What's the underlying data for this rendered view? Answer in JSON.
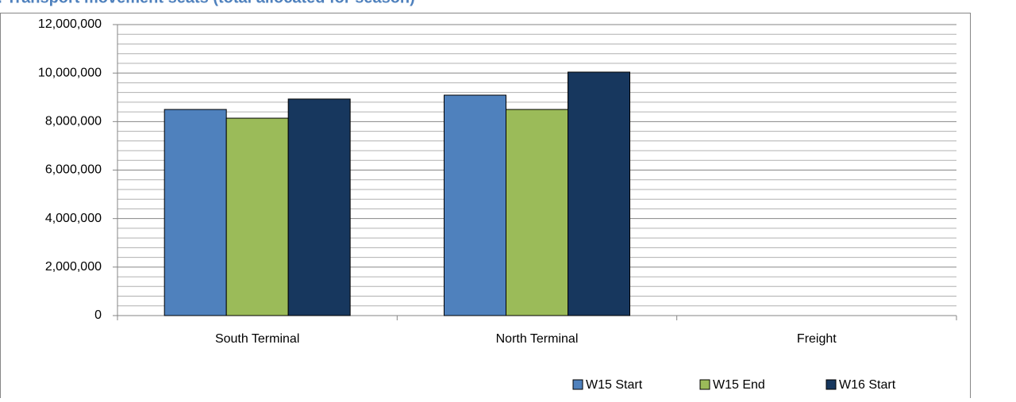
{
  "chart_data": {
    "type": "bar",
    "title": "ii. Transport movement seats (total allocated for season)",
    "categories": [
      "South Terminal",
      "North Terminal",
      "Freight"
    ],
    "series": [
      {
        "name": "W15 Start",
        "color": "#4f81bd",
        "values": [
          8500000,
          9090000,
          0
        ]
      },
      {
        "name": "W15 End",
        "color": "#9bbb59",
        "values": [
          8140000,
          8500000,
          0
        ]
      },
      {
        "name": "W16 Start",
        "color": "#17375e",
        "values": [
          8930000,
          10040000,
          0
        ]
      }
    ],
    "ylim": [
      0,
      12000000
    ],
    "yticks": [
      {
        "value": 0,
        "label": "0"
      },
      {
        "value": 2000000,
        "label": "2,000,000"
      },
      {
        "value": 4000000,
        "label": "4,000,000"
      },
      {
        "value": 6000000,
        "label": "6,000,000"
      },
      {
        "value": 8000000,
        "label": "8,000,000"
      },
      {
        "value": 10000000,
        "label": "10,000,000"
      },
      {
        "value": 12000000,
        "label": "12,000,000"
      }
    ],
    "grid": true,
    "legend": "bottom-right"
  }
}
